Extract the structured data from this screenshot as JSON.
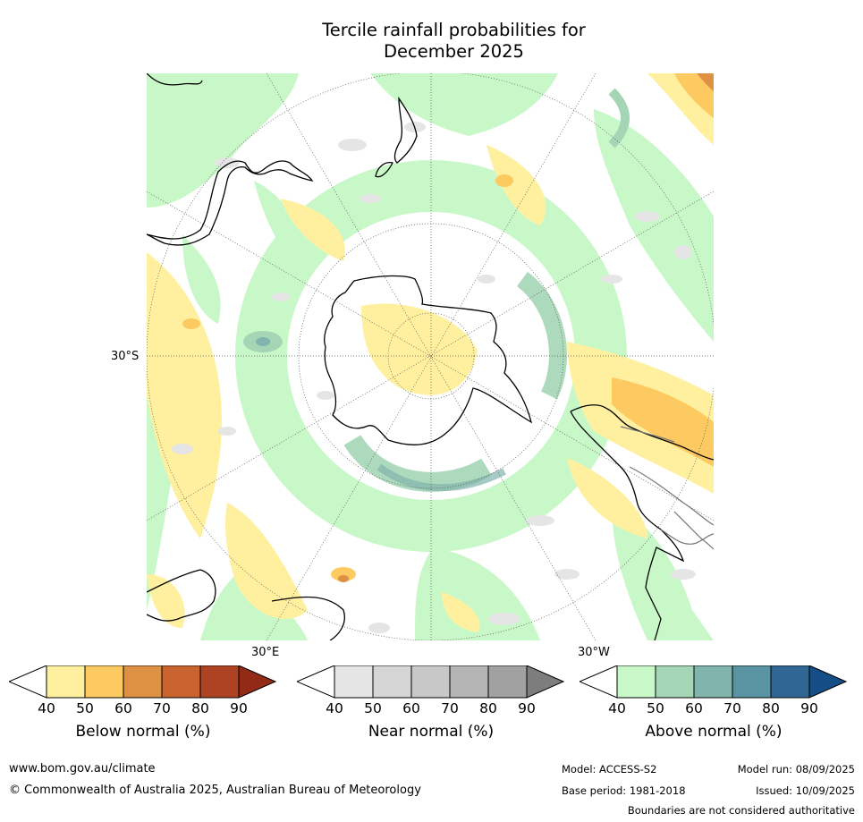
{
  "title_line1": "Tercile rainfall probabilities for",
  "title_line2": "December 2025",
  "map": {
    "lat_label": "30°S",
    "lon_label_left": "30°E",
    "lon_label_right": "30°W",
    "colors": {
      "below": [
        "#fff09f",
        "#fdc961",
        "#de9143",
        "#c9632f",
        "#ad4322",
        "#932a18"
      ],
      "near": [
        "#e5e5e5",
        "#d6d6d6",
        "#c8c8c8",
        "#b4b4b4",
        "#a1a1a1",
        "#7d7d7d"
      ],
      "above": [
        "#c9f8c8",
        "#a4d6b6",
        "#80b4ad",
        "#5a94a2",
        "#2f6694",
        "#154d86"
      ]
    }
  },
  "colorbars": [
    {
      "id": "below",
      "ticks": [
        "40",
        "50",
        "60",
        "70",
        "80",
        "90"
      ],
      "label": "Below normal (%)"
    },
    {
      "id": "near",
      "ticks": [
        "40",
        "50",
        "60",
        "70",
        "80",
        "90"
      ],
      "label": "Near normal (%)"
    },
    {
      "id": "above",
      "ticks": [
        "40",
        "50",
        "60",
        "70",
        "80",
        "90"
      ],
      "label": "Above normal (%)"
    }
  ],
  "footer": {
    "website": "www.bom.gov.au/climate",
    "copyright": "© Commonwealth of Australia 2025, Australian Bureau of Meteorology",
    "model": "Model: ACCESS-S2",
    "base_period": "Base period: 1981-2018",
    "model_run": "Model run: 08/09/2025",
    "issued": "Issued: 10/09/2025",
    "disclaimer": "Boundaries are not considered authoritative"
  }
}
